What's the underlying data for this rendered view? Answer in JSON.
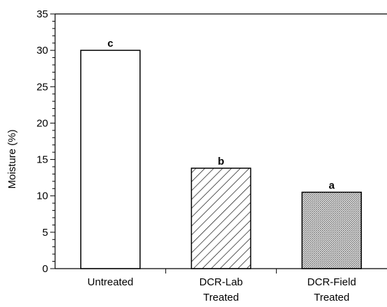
{
  "chart_data": {
    "type": "bar",
    "title": "",
    "xlabel": "",
    "ylabel": "Moisture (%)",
    "ylim": [
      0,
      35
    ],
    "ytick_step": 5,
    "minor_ticks_per_major": 5,
    "grid": false,
    "categories": [
      [
        "Untreated"
      ],
      [
        "DCR-Lab",
        "Treated"
      ],
      [
        "DCR-Field",
        "Treated"
      ]
    ],
    "values": [
      30,
      13.8,
      10.5
    ],
    "bar_labels": [
      "c",
      "b",
      "a"
    ],
    "bar_fills": [
      "white",
      "diagonal-hatch",
      "stipple"
    ]
  }
}
